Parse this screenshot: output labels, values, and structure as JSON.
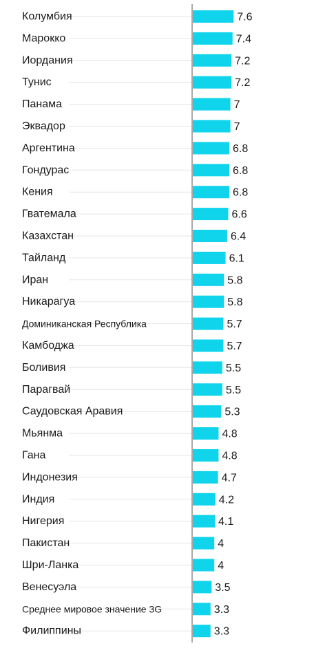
{
  "chart_data": {
    "type": "bar",
    "orientation": "horizontal",
    "categories": [
      "Колумбия",
      "Марокко",
      "Иордания",
      "Тунис",
      "Панама",
      "Эквадор",
      "Аргентина",
      "Гондурас",
      "Кения",
      "Гватемала",
      "Казахстан",
      "Тайланд",
      "Иран",
      "Никарагуа",
      "Доминиканская Республика",
      "Камбоджа",
      "Боливия",
      "Парагвай",
      "Саудовская Аравия",
      "Мьянма",
      "Гана",
      "Индонезия",
      "Индия",
      "Нигерия",
      "Пакистан",
      "Шри-Ланка",
      "Венесуэла",
      "Среднее мировое значение 3G",
      "Филиппины"
    ],
    "values": [
      7.6,
      7.4,
      7.2,
      7.2,
      7,
      7,
      6.8,
      6.8,
      6.8,
      6.6,
      6.4,
      6.1,
      5.8,
      5.8,
      5.7,
      5.7,
      5.5,
      5.5,
      5.3,
      4.8,
      4.8,
      4.7,
      4.2,
      4.1,
      4,
      4,
      3.5,
      3.3,
      3.3
    ],
    "value_labels": [
      "7.6",
      "7.4",
      "7.2",
      "7.2",
      "7",
      "7",
      "6.8",
      "6.8",
      "6.8",
      "6.6",
      "6.4",
      "6.1",
      "5.8",
      "5.8",
      "5.7",
      "5.7",
      "5.5",
      "5.5",
      "5.3",
      "4.8",
      "4.8",
      "4.7",
      "4.2",
      "4.1",
      "4",
      "4",
      "3.5",
      "3.3",
      "3.3"
    ],
    "grid": true,
    "legend": "none",
    "colors": {
      "bar": "#10d4ec",
      "axis": "#555555",
      "grid": "#e6e6e6",
      "text": "#1a1a1a"
    }
  }
}
